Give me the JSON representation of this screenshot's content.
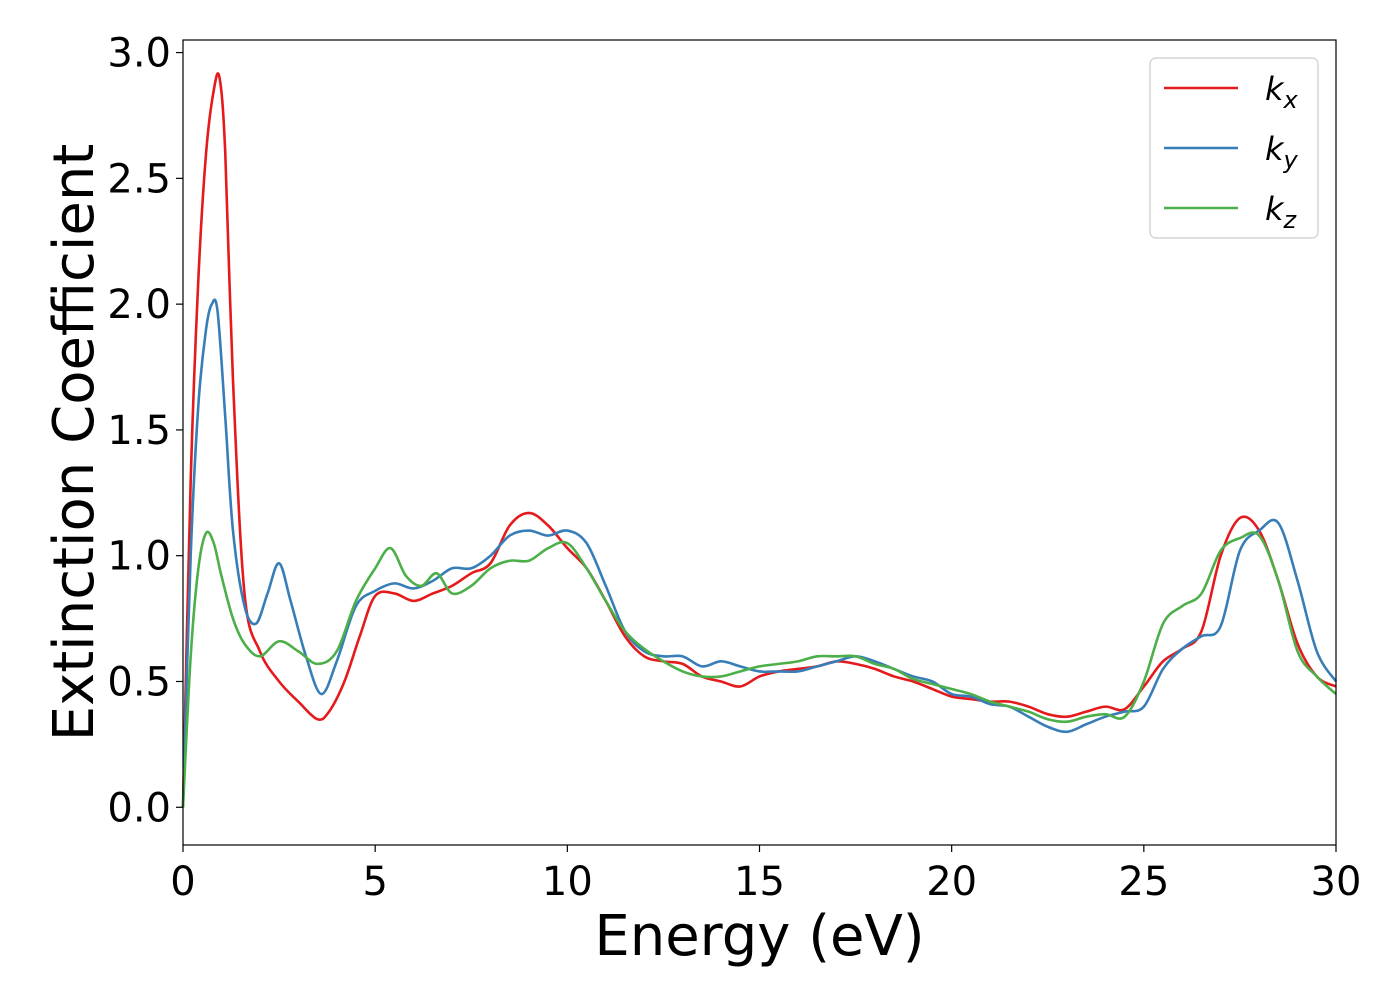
{
  "chart_data": {
    "type": "line",
    "title": "",
    "xlabel": "Energy (eV)",
    "ylabel": "Extinction Coefficient",
    "xlim": [
      0,
      30
    ],
    "ylim": [
      -0.15,
      3.05
    ],
    "xticks": [
      0,
      5,
      10,
      15,
      20,
      25,
      30
    ],
    "xtick_labels": [
      "0",
      "5",
      "10",
      "15",
      "20",
      "25",
      "30"
    ],
    "yticks": [
      0.0,
      0.5,
      1.0,
      1.5,
      2.0,
      2.5,
      3.0
    ],
    "ytick_labels": [
      "0.0",
      "0.5",
      "1.0",
      "1.5",
      "2.0",
      "2.5",
      "3.0"
    ],
    "grid": false,
    "legend_position": "top-right",
    "series": [
      {
        "name": "k_x",
        "label_base": "k",
        "label_sub": "x",
        "color": "#e41a1c",
        "x": [
          0,
          0.2,
          0.4,
          0.6,
          0.8,
          0.95,
          1.1,
          1.3,
          1.6,
          2.0,
          2.5,
          3.0,
          3.5,
          3.8,
          4.2,
          4.6,
          5.0,
          5.5,
          6.0,
          6.5,
          7.0,
          7.5,
          8.0,
          8.5,
          9.0,
          9.5,
          10.0,
          10.5,
          11.0,
          11.5,
          12.0,
          12.5,
          13.0,
          13.5,
          14.0,
          14.5,
          15.0,
          15.5,
          16.0,
          16.5,
          17.0,
          17.5,
          18.0,
          18.5,
          19.0,
          19.5,
          20.0,
          20.5,
          21.0,
          21.5,
          22.0,
          22.5,
          23.0,
          23.5,
          24.0,
          24.5,
          25.0,
          25.5,
          26.0,
          26.5,
          27.0,
          27.5,
          28.0,
          28.5,
          29.0,
          29.5,
          30.0
        ],
        "y": [
          0.0,
          1.3,
          2.1,
          2.6,
          2.85,
          2.9,
          2.6,
          1.7,
          0.85,
          0.62,
          0.5,
          0.42,
          0.35,
          0.38,
          0.5,
          0.68,
          0.84,
          0.85,
          0.82,
          0.85,
          0.88,
          0.93,
          0.97,
          1.12,
          1.17,
          1.12,
          1.03,
          0.95,
          0.82,
          0.68,
          0.6,
          0.58,
          0.57,
          0.52,
          0.5,
          0.48,
          0.52,
          0.54,
          0.55,
          0.56,
          0.58,
          0.57,
          0.55,
          0.52,
          0.5,
          0.47,
          0.44,
          0.43,
          0.42,
          0.42,
          0.4,
          0.37,
          0.36,
          0.38,
          0.4,
          0.39,
          0.48,
          0.58,
          0.63,
          0.7,
          1.0,
          1.15,
          1.1,
          0.9,
          0.65,
          0.52,
          0.48
        ]
      },
      {
        "name": "k_y",
        "label_base": "k",
        "label_sub": "y",
        "color": "#377eb8",
        "x": [
          0,
          0.2,
          0.4,
          0.6,
          0.75,
          0.9,
          1.1,
          1.3,
          1.6,
          1.9,
          2.2,
          2.5,
          2.8,
          3.2,
          3.6,
          4.0,
          4.5,
          5.0,
          5.5,
          6.0,
          6.5,
          7.0,
          7.5,
          8.0,
          8.5,
          9.0,
          9.5,
          10.0,
          10.5,
          11.0,
          11.5,
          12.0,
          12.5,
          13.0,
          13.5,
          14.0,
          14.5,
          15.0,
          15.5,
          16.0,
          16.5,
          17.0,
          17.5,
          18.0,
          18.5,
          19.0,
          19.5,
          20.0,
          20.5,
          21.0,
          21.5,
          22.0,
          22.5,
          23.0,
          23.5,
          24.0,
          24.5,
          25.0,
          25.5,
          26.0,
          26.5,
          27.0,
          27.5,
          28.0,
          28.5,
          29.0,
          29.5,
          30.0
        ],
        "y": [
          0.0,
          1.0,
          1.6,
          1.9,
          2.0,
          1.97,
          1.55,
          1.1,
          0.8,
          0.73,
          0.85,
          0.97,
          0.82,
          0.6,
          0.45,
          0.58,
          0.8,
          0.86,
          0.89,
          0.87,
          0.9,
          0.95,
          0.95,
          1.0,
          1.08,
          1.1,
          1.08,
          1.1,
          1.05,
          0.88,
          0.7,
          0.62,
          0.6,
          0.6,
          0.56,
          0.58,
          0.56,
          0.54,
          0.54,
          0.54,
          0.56,
          0.58,
          0.6,
          0.58,
          0.55,
          0.52,
          0.5,
          0.45,
          0.44,
          0.41,
          0.4,
          0.36,
          0.32,
          0.3,
          0.33,
          0.36,
          0.38,
          0.4,
          0.55,
          0.63,
          0.68,
          0.72,
          1.02,
          1.1,
          1.13,
          0.9,
          0.62,
          0.5
        ]
      },
      {
        "name": "k_z",
        "label_base": "k",
        "label_sub": "z",
        "color": "#4daf4a",
        "x": [
          0,
          0.2,
          0.4,
          0.6,
          0.8,
          1.0,
          1.3,
          1.6,
          2.0,
          2.5,
          3.0,
          3.5,
          4.0,
          4.5,
          5.0,
          5.4,
          5.8,
          6.2,
          6.6,
          7.0,
          7.5,
          8.0,
          8.5,
          9.0,
          9.5,
          10.0,
          10.5,
          11.0,
          11.5,
          12.0,
          12.5,
          13.0,
          13.5,
          14.0,
          14.5,
          15.0,
          15.5,
          16.0,
          16.5,
          17.0,
          17.5,
          18.0,
          18.5,
          19.0,
          19.5,
          20.0,
          20.5,
          21.0,
          21.5,
          22.0,
          22.5,
          23.0,
          23.5,
          24.0,
          24.5,
          25.0,
          25.5,
          26.0,
          26.5,
          27.0,
          27.5,
          28.0,
          28.5,
          29.0,
          29.5,
          30.0
        ],
        "y": [
          0.0,
          0.6,
          0.95,
          1.09,
          1.05,
          0.92,
          0.75,
          0.65,
          0.6,
          0.66,
          0.62,
          0.57,
          0.62,
          0.82,
          0.95,
          1.03,
          0.92,
          0.88,
          0.93,
          0.85,
          0.88,
          0.95,
          0.98,
          0.98,
          1.03,
          1.05,
          0.95,
          0.82,
          0.7,
          0.63,
          0.58,
          0.54,
          0.52,
          0.52,
          0.54,
          0.56,
          0.57,
          0.58,
          0.6,
          0.6,
          0.6,
          0.57,
          0.55,
          0.51,
          0.49,
          0.47,
          0.45,
          0.42,
          0.4,
          0.38,
          0.35,
          0.34,
          0.36,
          0.37,
          0.36,
          0.5,
          0.73,
          0.8,
          0.85,
          1.02,
          1.07,
          1.08,
          0.9,
          0.62,
          0.52,
          0.45
        ]
      }
    ]
  }
}
